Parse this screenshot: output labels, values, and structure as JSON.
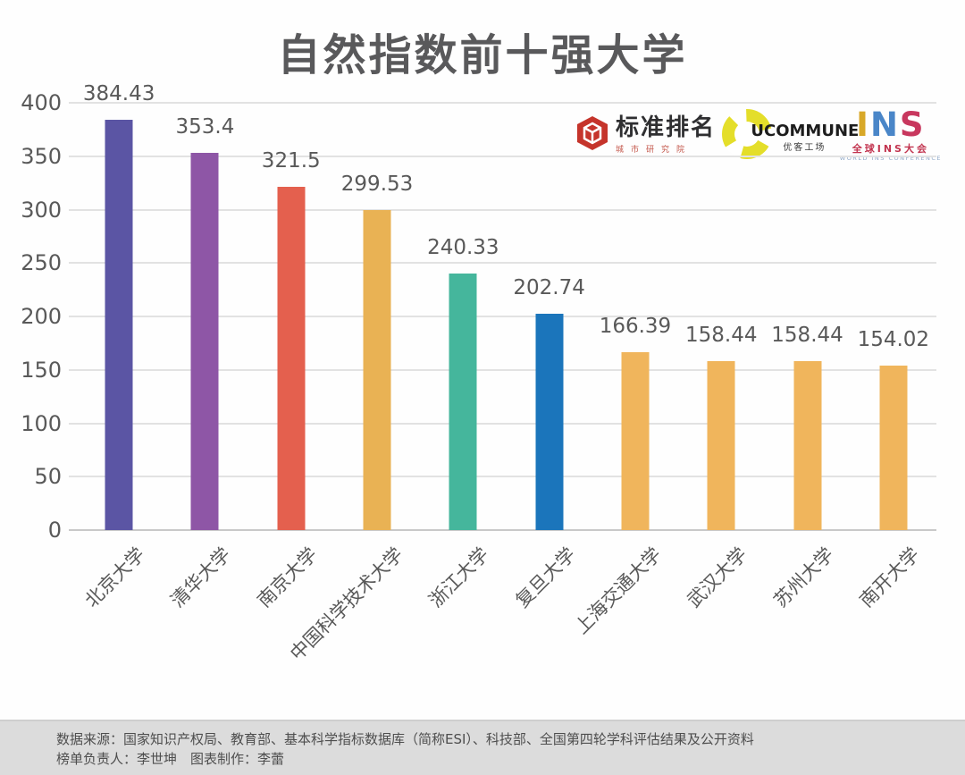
{
  "title": "自然指数前十强大学",
  "logos": {
    "standard_ranking": {
      "name": "标准排名",
      "subtitle": "城市研究院",
      "icon_color": "#c5342b"
    },
    "ucommune": {
      "name": "UCOMMUNE",
      "subtitle": "优客工场",
      "icon_color": "#e4de2a"
    },
    "ins": {
      "letters": {
        "0": "I",
        "1": "N",
        "2": "S"
      },
      "letter_colors": {
        "0": "#d8a828",
        "1": "#4a86c8",
        "2": "#c8375e"
      },
      "subtitle": "全球INS大会",
      "subtitle2": "WORLD INS CONFERENCE"
    }
  },
  "chart_data": {
    "type": "bar",
    "title": "自然指数前十强大学",
    "categories": [
      "北京大学",
      "清华大学",
      "南京大学",
      "中国科学技术大学",
      "浙江大学",
      "复旦大学",
      "上海交通大学",
      "武汉大学",
      "苏州大学",
      "南开大学"
    ],
    "values": [
      384.43,
      353.4,
      321.5,
      299.53,
      240.33,
      202.74,
      166.39,
      158.44,
      158.44,
      154.02
    ],
    "value_labels": [
      "384.43",
      "353.4",
      "321.5",
      "299.53",
      "240.33",
      "202.74",
      "166.39",
      "158.44",
      "158.44",
      "154.02"
    ],
    "bar_colors": [
      "#5b55a4",
      "#8e56a6",
      "#e4604e",
      "#e9b254",
      "#45b69c",
      "#1b75bb",
      "#f0b55c",
      "#f0b55c",
      "#f0b55c",
      "#f0b55c"
    ],
    "xlabel": "",
    "ylabel": "",
    "ylim": [
      0,
      400
    ],
    "yticks": [
      0,
      50,
      100,
      150,
      200,
      250,
      300,
      350,
      400
    ],
    "grid": true,
    "legend": false,
    "grid_color": "#e2e2e2",
    "label_color": "#595959"
  },
  "footer": {
    "line1": "数据来源：国家知识产权局、教育部、基本科学指标数据库（简称ESI）、科技部、全国第四轮学科评估结果及公开资料",
    "line2": "榜单负责人：李世坤　图表制作：李蕾"
  }
}
